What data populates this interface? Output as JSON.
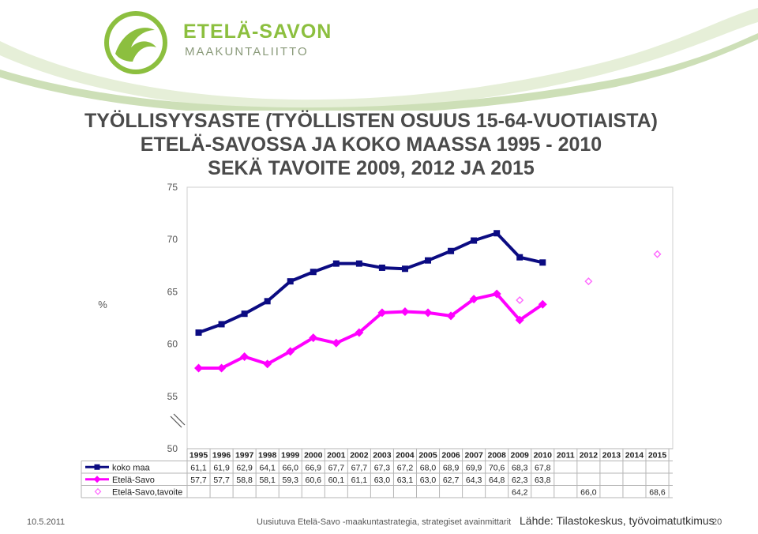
{
  "logo": {
    "line1": "ETELÄ-SAVON",
    "line2": "MAAKUNTALIITTO"
  },
  "title_lines": [
    "TYÖLLISYYSASTE (TYÖLLISTEN OSUUS 15-64-VUOTIAISTA)",
    "ETELÄ-SAVOSSA JA KOKO MAASSA 1995 - 2010",
    "SEKÄ TAVOITE 2009, 2012 JA 2015"
  ],
  "footer": {
    "date": "10.5.2011",
    "center": "Uusiutuva Etelä-Savo -maakuntastrategia, strategiset avainmittarit",
    "source": "Lähde: Tilastokeskus, työvoimatutkimus",
    "page": "20"
  },
  "colors": {
    "koko_maa": "#0b0b82",
    "etela_savo": "#ff00ff",
    "tavoite": "#ff66ff",
    "logo_green": "#8cbf3f"
  },
  "chart_data": {
    "type": "line",
    "ylabel": "%",
    "ylim": [
      50,
      75
    ],
    "yticks": [
      50,
      55,
      60,
      65,
      70,
      75
    ],
    "axis_break": true,
    "grid": false,
    "legend": "data table below plot",
    "categories": [
      "1995",
      "1996",
      "1997",
      "1998",
      "1999",
      "2000",
      "2001",
      "2002",
      "2003",
      "2004",
      "2005",
      "2006",
      "2007",
      "2008",
      "2009",
      "2010",
      "2011",
      "2012",
      "2013",
      "2014",
      "2015"
    ],
    "series": [
      {
        "name": "koko maa",
        "marker": "square",
        "color": "#0b0b82",
        "values": [
          61.1,
          61.9,
          62.9,
          64.1,
          66.0,
          66.9,
          67.7,
          67.7,
          67.3,
          67.2,
          68.0,
          68.9,
          69.9,
          70.6,
          68.3,
          67.8,
          null,
          null,
          null,
          null,
          null
        ],
        "labels": [
          "61,1",
          "61,9",
          "62,9",
          "64,1",
          "66,0",
          "66,9",
          "67,7",
          "67,7",
          "67,3",
          "67,2",
          "68,0",
          "68,9",
          "69,9",
          "70,6",
          "68,3",
          "67,8",
          "",
          "",
          "",
          "",
          ""
        ]
      },
      {
        "name": "Etelä-Savo",
        "marker": "diamond",
        "color": "#ff00ff",
        "values": [
          57.7,
          57.7,
          58.8,
          58.1,
          59.3,
          60.6,
          60.1,
          61.1,
          63.0,
          63.1,
          63.0,
          62.7,
          64.3,
          64.8,
          62.3,
          63.8,
          null,
          null,
          null,
          null,
          null
        ],
        "labels": [
          "57,7",
          "57,7",
          "58,8",
          "58,1",
          "59,3",
          "60,6",
          "60,1",
          "61,1",
          "63,0",
          "63,1",
          "63,0",
          "62,7",
          "64,3",
          "64,8",
          "62,3",
          "63,8",
          "",
          "",
          "",
          "",
          ""
        ]
      },
      {
        "name": "Etelä-Savo,tavoite",
        "marker": "open-diamond",
        "color": "#ff66ff",
        "values": [
          null,
          null,
          null,
          null,
          null,
          null,
          null,
          null,
          null,
          null,
          null,
          null,
          null,
          null,
          64.2,
          null,
          null,
          66.0,
          null,
          null,
          68.6
        ],
        "labels": [
          "",
          "",
          "",
          "",
          "",
          "",
          "",
          "",
          "",
          "",
          "",
          "",
          "",
          "",
          "64,2",
          "",
          "",
          "66,0",
          "",
          "",
          "68,6"
        ]
      }
    ]
  }
}
